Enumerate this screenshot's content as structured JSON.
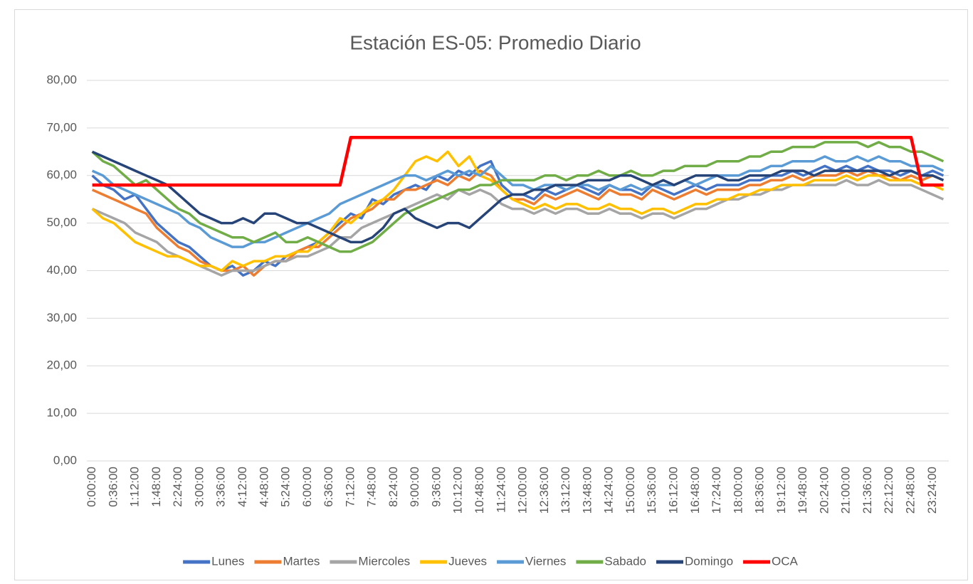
{
  "chart_data": {
    "type": "line",
    "title": "Estación ES-05: Promedio Diario",
    "categories": [
      "0:00:00",
      null,
      "0:36:00",
      null,
      "1:12:00",
      null,
      "1:48:00",
      null,
      "2:24:00",
      null,
      "3:00:00",
      null,
      "3:36:00",
      null,
      "4:12:00",
      null,
      "4:48:00",
      null,
      "5:24:00",
      null,
      "6:00:00",
      null,
      "6:36:00",
      null,
      "7:12:00",
      null,
      "7:48:00",
      null,
      "8:24:00",
      null,
      "9:00:00",
      null,
      "9:36:00",
      null,
      "10:12:00",
      null,
      "10:48:00",
      null,
      "11:24:00",
      null,
      "12:00:00",
      null,
      "12:36:00",
      null,
      "13:12:00",
      null,
      "13:48:00",
      null,
      "14:24:00",
      null,
      "15:00:00",
      null,
      "15:36:00",
      null,
      "16:12:00",
      null,
      "16:48:00",
      null,
      "17:24:00",
      null,
      "18:00:00",
      null,
      "18:36:00",
      null,
      "19:12:00",
      null,
      "19:48:00",
      null,
      "20:24:00",
      null,
      "21:00:00",
      null,
      "21:36:00",
      null,
      "22:12:00",
      null,
      "22:48:00",
      null,
      "23:24:00",
      null
    ],
    "ylim": [
      0,
      80
    ],
    "yticks": [
      {
        "value": 0,
        "label": "0,00"
      },
      {
        "value": 10,
        "label": "10,00"
      },
      {
        "value": 20,
        "label": "20,00"
      },
      {
        "value": 30,
        "label": "30,00"
      },
      {
        "value": 40,
        "label": "40,00"
      },
      {
        "value": 50,
        "label": "50,00"
      },
      {
        "value": 60,
        "label": "60,00"
      },
      {
        "value": 70,
        "label": "70,00"
      },
      {
        "value": 80,
        "label": "80,00"
      }
    ],
    "grid": true,
    "legend": "bottom",
    "series": [
      {
        "name": "Lunes",
        "color": "#4472c4",
        "values": [
          60,
          58,
          57,
          55,
          56,
          53,
          50,
          48,
          46,
          45,
          43,
          41,
          40,
          41,
          39,
          40,
          42,
          41,
          43,
          44,
          45,
          46,
          48,
          50,
          52,
          51,
          55,
          54,
          56,
          57,
          58,
          57,
          60,
          59,
          61,
          60,
          62,
          63,
          58,
          56,
          56,
          55,
          57,
          56,
          57,
          58,
          57,
          56,
          58,
          57,
          57,
          56,
          58,
          57,
          56,
          57,
          58,
          57,
          58,
          58,
          58,
          59,
          59,
          60,
          60,
          61,
          60,
          61,
          62,
          61,
          62,
          61,
          62,
          61,
          61,
          60,
          61,
          60,
          61,
          60
        ]
      },
      {
        "name": "Martes",
        "color": "#ed7d31",
        "values": [
          57,
          56,
          55,
          54,
          53,
          52,
          49,
          47,
          45,
          44,
          42,
          41,
          40,
          40,
          41,
          39,
          41,
          42,
          42,
          44,
          45,
          45,
          47,
          49,
          51,
          52,
          53,
          55,
          55,
          57,
          57,
          58,
          59,
          58,
          60,
          59,
          61,
          60,
          57,
          55,
          55,
          54,
          56,
          55,
          56,
          57,
          56,
          55,
          57,
          56,
          56,
          55,
          57,
          56,
          55,
          56,
          57,
          56,
          57,
          57,
          57,
          58,
          58,
          59,
          59,
          60,
          59,
          60,
          60,
          60,
          61,
          60,
          61,
          60,
          60,
          59,
          60,
          59,
          60,
          59
        ]
      },
      {
        "name": "Miercoles",
        "color": "#a5a5a5",
        "values": [
          53,
          52,
          51,
          50,
          48,
          47,
          46,
          44,
          43,
          42,
          41,
          40,
          39,
          40,
          40,
          40,
          41,
          42,
          42,
          43,
          43,
          44,
          45,
          47,
          47,
          49,
          50,
          51,
          52,
          53,
          54,
          55,
          56,
          55,
          57,
          56,
          57,
          56,
          54,
          53,
          53,
          52,
          53,
          52,
          53,
          53,
          52,
          52,
          53,
          52,
          52,
          51,
          52,
          52,
          51,
          52,
          53,
          53,
          54,
          55,
          55,
          56,
          56,
          57,
          57,
          58,
          58,
          58,
          58,
          58,
          59,
          58,
          58,
          59,
          58,
          58,
          58,
          57,
          56,
          55
        ]
      },
      {
        "name": "Jueves",
        "color": "#ffc000",
        "values": [
          53,
          51,
          50,
          48,
          46,
          45,
          44,
          43,
          43,
          42,
          41,
          41,
          40,
          42,
          41,
          42,
          42,
          43,
          43,
          44,
          44,
          46,
          48,
          51,
          50,
          52,
          54,
          55,
          57,
          60,
          63,
          64,
          63,
          65,
          62,
          64,
          60,
          59,
          57,
          55,
          54,
          53,
          54,
          53,
          54,
          54,
          53,
          53,
          54,
          53,
          53,
          52,
          53,
          53,
          52,
          53,
          54,
          54,
          55,
          55,
          56,
          56,
          57,
          57,
          58,
          58,
          58,
          59,
          59,
          59,
          60,
          59,
          60,
          60,
          59,
          59,
          59,
          58,
          58,
          57
        ]
      },
      {
        "name": "Viernes",
        "color": "#5b9bd5",
        "values": [
          61,
          60,
          58,
          57,
          56,
          55,
          54,
          53,
          52,
          50,
          49,
          47,
          46,
          45,
          45,
          46,
          46,
          47,
          48,
          49,
          50,
          51,
          52,
          54,
          55,
          56,
          57,
          58,
          59,
          60,
          60,
          59,
          60,
          61,
          60,
          61,
          60,
          62,
          60,
          58,
          58,
          57,
          58,
          58,
          57,
          58,
          58,
          57,
          58,
          57,
          58,
          57,
          58,
          58,
          58,
          59,
          58,
          59,
          60,
          60,
          60,
          61,
          61,
          62,
          62,
          63,
          63,
          63,
          64,
          63,
          63,
          64,
          63,
          64,
          63,
          63,
          62,
          62,
          62,
          61
        ]
      },
      {
        "name": "Sabado",
        "color": "#70ad47",
        "values": [
          65,
          63,
          62,
          60,
          58,
          59,
          57,
          55,
          53,
          52,
          50,
          49,
          48,
          47,
          47,
          46,
          47,
          48,
          46,
          46,
          47,
          46,
          45,
          44,
          44,
          45,
          46,
          48,
          50,
          52,
          53,
          54,
          55,
          56,
          57,
          57,
          58,
          58,
          59,
          59,
          59,
          59,
          60,
          60,
          59,
          60,
          60,
          61,
          60,
          60,
          61,
          60,
          60,
          61,
          61,
          62,
          62,
          62,
          63,
          63,
          63,
          64,
          64,
          65,
          65,
          66,
          66,
          66,
          67,
          67,
          67,
          67,
          66,
          67,
          66,
          66,
          65,
          65,
          64,
          63
        ]
      },
      {
        "name": "Domingo",
        "color": "#264478",
        "values": [
          65,
          64,
          63,
          62,
          61,
          60,
          59,
          58,
          56,
          54,
          52,
          51,
          50,
          50,
          51,
          50,
          52,
          52,
          51,
          50,
          50,
          49,
          48,
          47,
          46,
          46,
          47,
          49,
          52,
          53,
          51,
          50,
          49,
          50,
          50,
          49,
          51,
          53,
          55,
          56,
          56,
          57,
          57,
          58,
          58,
          58,
          59,
          59,
          59,
          60,
          60,
          59,
          58,
          59,
          58,
          59,
          60,
          60,
          60,
          59,
          59,
          60,
          60,
          60,
          61,
          61,
          61,
          60,
          61,
          61,
          61,
          61,
          61,
          61,
          60,
          61,
          61,
          60,
          60,
          59
        ]
      },
      {
        "name": "OCA",
        "color": "#ff0000",
        "values": [
          58,
          58,
          58,
          58,
          58,
          58,
          58,
          58,
          58,
          58,
          58,
          58,
          58,
          58,
          58,
          58,
          58,
          58,
          58,
          58,
          58,
          58,
          58,
          58,
          68,
          68,
          68,
          68,
          68,
          68,
          68,
          68,
          68,
          68,
          68,
          68,
          68,
          68,
          68,
          68,
          68,
          68,
          68,
          68,
          68,
          68,
          68,
          68,
          68,
          68,
          68,
          68,
          68,
          68,
          68,
          68,
          68,
          68,
          68,
          68,
          68,
          68,
          68,
          68,
          68,
          68,
          68,
          68,
          68,
          68,
          68,
          68,
          68,
          68,
          68,
          68,
          68,
          58,
          58,
          58
        ]
      }
    ]
  }
}
